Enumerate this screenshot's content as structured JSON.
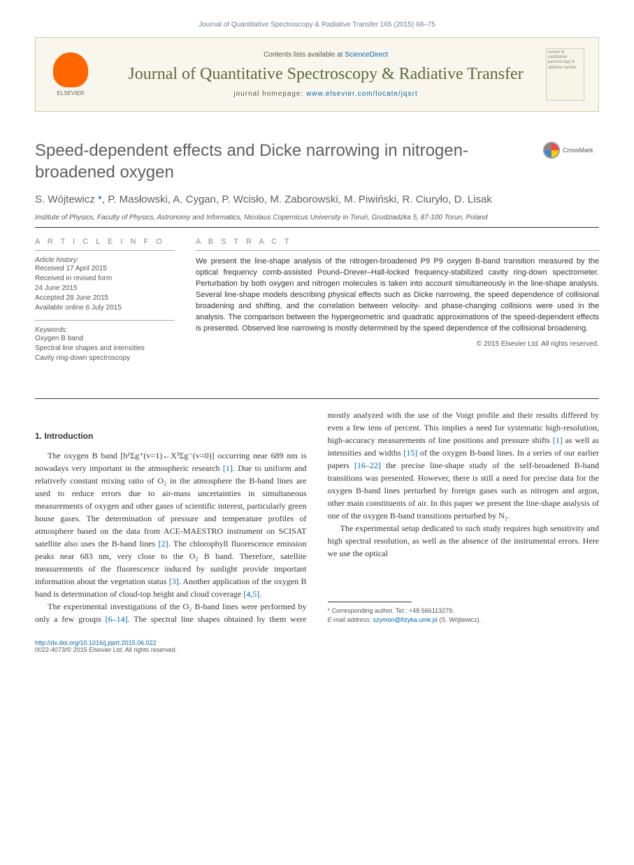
{
  "journal_ref": "Journal of Quantitative Spectroscopy & Radiative Transfer 165 (2015) 68–75",
  "header": {
    "contents_prefix": "Contents lists available at ",
    "contents_link": "ScienceDirect",
    "journal_name": "Journal of Quantitative Spectroscopy & Radiative Transfer",
    "homepage_prefix": "journal homepage: ",
    "homepage_url": "www.elsevier.com/locate/jqsrt",
    "publisher": "ELSEVIER",
    "cover_text": "ournal of uantitative pectroscopy & adiative ransfer"
  },
  "article": {
    "title": "Speed-dependent effects and Dicke narrowing in nitrogen-broadened oxygen",
    "crossmark": "CrossMark",
    "authors": "S. Wójtewicz *, P. Masłowski, A. Cygan, P. Wcisło, M. Zaborowski, M. Piwiński, R. Ciuryło, D. Lisak",
    "affiliation": "Institute of Physics, Faculty of Physics, Astronomy and Informatics, Nicolaus Copernicus University in Toruń, Grudziadzka 5, 87-100 Torun, Poland"
  },
  "info": {
    "heading": "A R T I C L E   I N F O",
    "history_label": "Article history:",
    "history": "Received 17 April 2015\nReceived in revised form\n24 June 2015\nAccepted 28 June 2015\nAvailable online 6 July 2015",
    "keywords_label": "Keywords:",
    "keywords": "Oxygen B band\nSpectral line shapes and intensities\nCavity ring-down spectroscopy"
  },
  "abstract": {
    "heading": "A B S T R A C T",
    "text": "We present the line-shape analysis of the nitrogen-broadened P9 P9 oxygen B-band transition measured by the optical frequency comb-assisted Pound–Drever–Hall-locked frequency-stabilized cavity ring-down spectrometer. Perturbation by both oxygen and nitrogen molecules is taken into account simultaneously in the line-shape analysis. Several line-shape models describing physical effects such as Dicke narrowing, the speed dependence of collisional broadening and shifting, and the correlation between velocity- and phase-changing collisions were used in the analysis. The comparison between the hypergeometric and quadratic approximations of the speed-dependent effects is presented. Observed line narrowing is mostly determined by the speed dependence of the collisional broadening.",
    "copyright": "© 2015 Elsevier Ltd. All rights reserved."
  },
  "body": {
    "section_num": "1.",
    "section_title": "Introduction",
    "p1a": "The oxygen B band [b¹Σg⁺(v=1)←X³Σg⁻(v=0)] occurring near 689 nm is nowadays very important in the atmospheric research ",
    "ref1": "[1]",
    "p1b": ". Due to uniform and relatively constant mixing ratio of O₂ in the atmosphere the B-band lines are used to reduce errors due to air-mass uncertainties in simultaneous measurements of oxygen and other gases of scientific interest, particularly green house gases. The determination of pressure and temperature profiles of atmosphere based on the data from ACE-MAESTRO instrument on SCISAT satellite also uses the B-band lines ",
    "ref2": "[2]",
    "p1c": ". The chlorophyll fluorescence emission peaks near 683 nm, very close to the O₂ B band. Therefore, satellite measurements of the fluorescence induced by sunlight provide important information about the vegetation status ",
    "ref3": "[3]",
    "p1d": ". Another application of the oxygen B band is determination of cloud-top height and cloud coverage ",
    "ref45": "[4,5]",
    "p1e": ".",
    "p2a": "The experimental investigations of the O₂ B-band lines were performed by only a few groups ",
    "ref614": "[6–14]",
    "p2b": ". The spectral line shapes obtained by them were mostly analyzed with the use of the Voigt profile and their results differed by even a few tens of percent. This implies a need for systematic high-resolution, high-accuracy measurements of line positions and pressure shifts ",
    "ref1b": "[1]",
    "p2c": " as well as intensities and widths ",
    "ref15": "[15]",
    "p2d": " of the oxygen B-band lines. In a series of our earlier papers ",
    "ref1622": "[16–22]",
    "p2e": " the precise line-shape study of the self-broadened B-band transitions was presented. However, there is still a need for precise data for the oxygen B-band lines perturbed by foreign gases such as nitrogen and argon, other main constituents of air. In this paper we present the line-shape analysis of one of the oxygen B-band transitions perturbed by N₂.",
    "p3": "The experimental setup dedicated to such study requires high sensitivity and high spectral resolution, as well as the absence of the instrumental errors. Here we use the optical"
  },
  "footnote": {
    "corr": "* Corresponding author. Tel.: +48 566113279.",
    "email_label": "E-mail address: ",
    "email": "szymon@fizyka.umk.pl",
    "email_suffix": " (S. Wójtewicz)."
  },
  "footer": {
    "doi": "http://dx.doi.org/10.1016/j.jqsrt.2015.06.022",
    "issn": "0022-4073/© 2015 Elsevier Ltd. All rights reserved."
  },
  "colors": {
    "link": "#0066aa",
    "header_bg": "#f9f6ed",
    "header_border": "#d4c9a8",
    "journal_green": "#5a6b3a",
    "elsevier_orange": "#ff6600",
    "title_gray": "#5f5f5f"
  }
}
